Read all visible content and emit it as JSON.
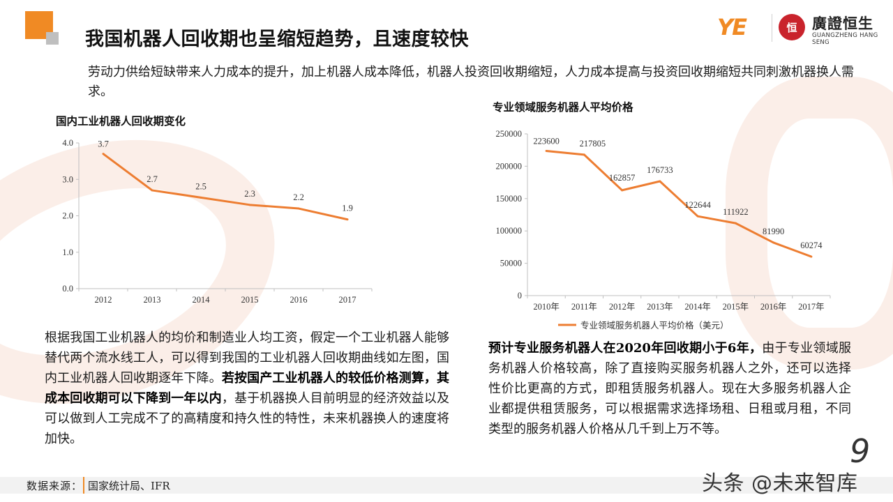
{
  "title": "我国机器人回收期也呈缩短趋势，且速度较快",
  "brand": {
    "mark": "YE",
    "seal": "恒",
    "name_cn": "廣證恒生",
    "name_en": "GUANGZHENG HANG SENG"
  },
  "intro": "劳动力供给短缺带来人力成本的提升，加上机器人成本降低，机器人投资回收期缩短，人力成本提高与投资回收期缩短共同刺激机器换人需求。",
  "left_chart_title": "国内工业机器人回收期变化",
  "right_chart_title": "专业领域服务机器人平均价格",
  "chart_data": [
    {
      "type": "line",
      "categories": [
        "2012",
        "2013",
        "2014",
        "2015",
        "2016",
        "2017"
      ],
      "values": [
        3.7,
        2.7,
        2.5,
        2.3,
        2.2,
        1.9
      ],
      "value_labels": [
        "3.7",
        "2.7",
        "2.5",
        "2.3",
        "2.2",
        "1.9"
      ],
      "yticks": [
        "0.0",
        "1.0",
        "2.0",
        "3.0",
        "4.0"
      ],
      "ylim": [
        0,
        4
      ],
      "color": "#ed7d31",
      "grid": false
    },
    {
      "type": "line",
      "categories": [
        "2010年",
        "2011年",
        "2012年",
        "2013年",
        "2014年",
        "2015年",
        "2016年",
        "2017年"
      ],
      "series": [
        {
          "name": "专业领域服务机器人平均价格（美元）",
          "values": [
            223600,
            217805,
            162857,
            176733,
            122644,
            111922,
            81990,
            60274
          ]
        }
      ],
      "value_labels": [
        "223600",
        "217805",
        "162857",
        "176733",
        "122644",
        "111922",
        "81990",
        "60274"
      ],
      "yticks": [
        "0",
        "50000",
        "100000",
        "150000",
        "200000",
        "250000"
      ],
      "ylim": [
        0,
        250000
      ],
      "color": "#ed7d31",
      "legend": "bottom",
      "grid": false
    }
  ],
  "left_para": {
    "text1": "根据我国工业机器人的均价和制造业人均工资，假定一个工业机器人能够替代两个流水线工人，可以得到我国的工业机器人回收期曲线如左图，国内工业机器人回收期逐年下降。",
    "bold": "若按国产工业机器人的较低价格测算，其成本回收期可以下降到一年以内",
    "text2": "，基于机器换人目前明显的经济效益以及可以做到人工完成不了的高精度和持久性的特性，未来机器换人的速度将加快。"
  },
  "right_para": {
    "bold": "预计专业服务机器人在2020年回收期小于6年，",
    "text": "由于专业领域服务机器人价格较高，除了直接购买服务机器人之外，还可以选择性价比更高的方式，即租赁服务机器人。现在大多服务机器人企业都提供租赁服务，可以根据需求选择场租、日租或月租，不同类型的服务机器人价格从几千到上万不等。"
  },
  "source": {
    "label": "数据来源：",
    "value": "国家统计局、IFR"
  },
  "page_number": "9",
  "watermark": "头条 @未来智库"
}
